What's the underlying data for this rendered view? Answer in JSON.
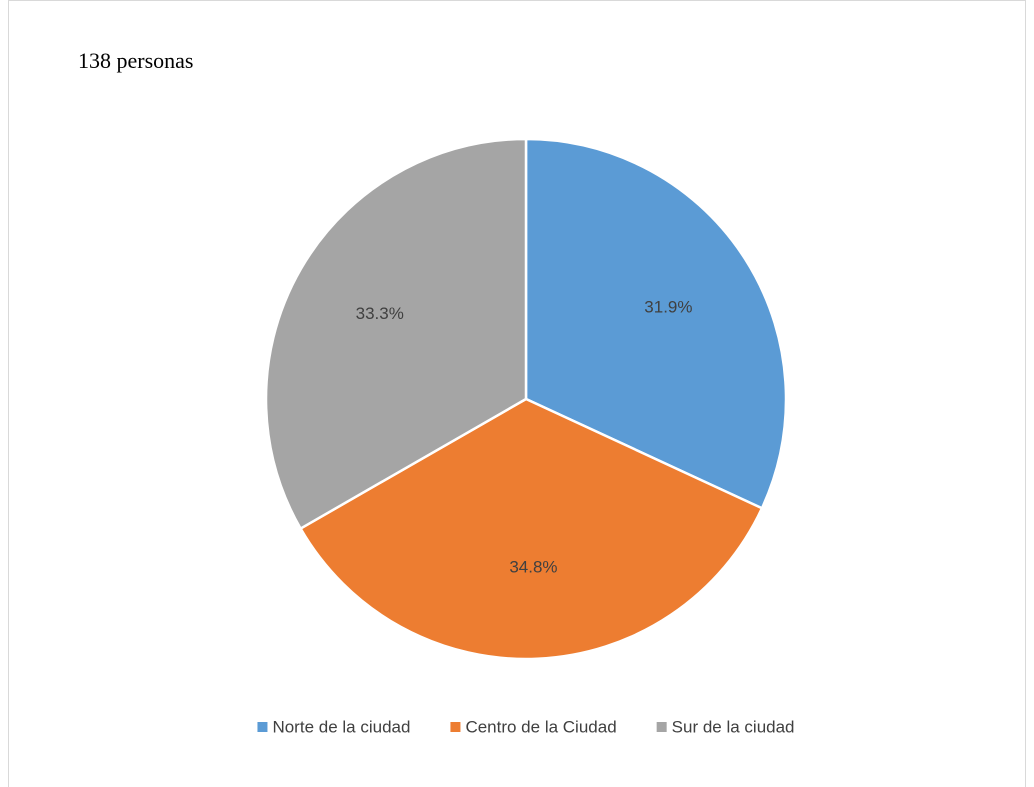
{
  "chart_data": {
    "type": "pie",
    "title": "138 personas",
    "categories": [
      "Norte de la ciudad",
      "Centro de la Ciudad",
      "Sur de la ciudad"
    ],
    "values": [
      31.9,
      34.8,
      33.3
    ],
    "value_labels": [
      "31.9%",
      "34.8%",
      "33.3%"
    ],
    "colors": [
      "#5b9bd5",
      "#ed7d31",
      "#a5a5a5"
    ],
    "legend": "bottom"
  }
}
